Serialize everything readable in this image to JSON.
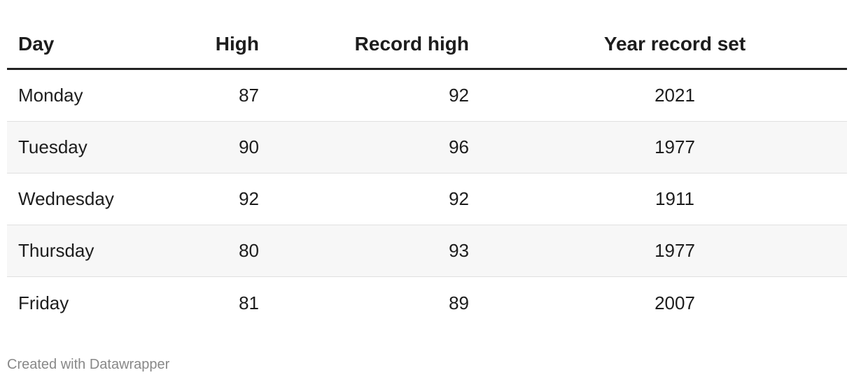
{
  "table": {
    "headers": [
      "Day",
      "High",
      "Record high",
      "Year record set"
    ],
    "rows": [
      [
        "Monday",
        87,
        92,
        2021
      ],
      [
        "Tuesday",
        90,
        96,
        1977
      ],
      [
        "Wednesday",
        92,
        92,
        1911
      ],
      [
        "Thursday",
        80,
        93,
        1977
      ],
      [
        "Friday",
        81,
        89,
        2007
      ]
    ]
  },
  "footer": "Created with Datawrapper"
}
